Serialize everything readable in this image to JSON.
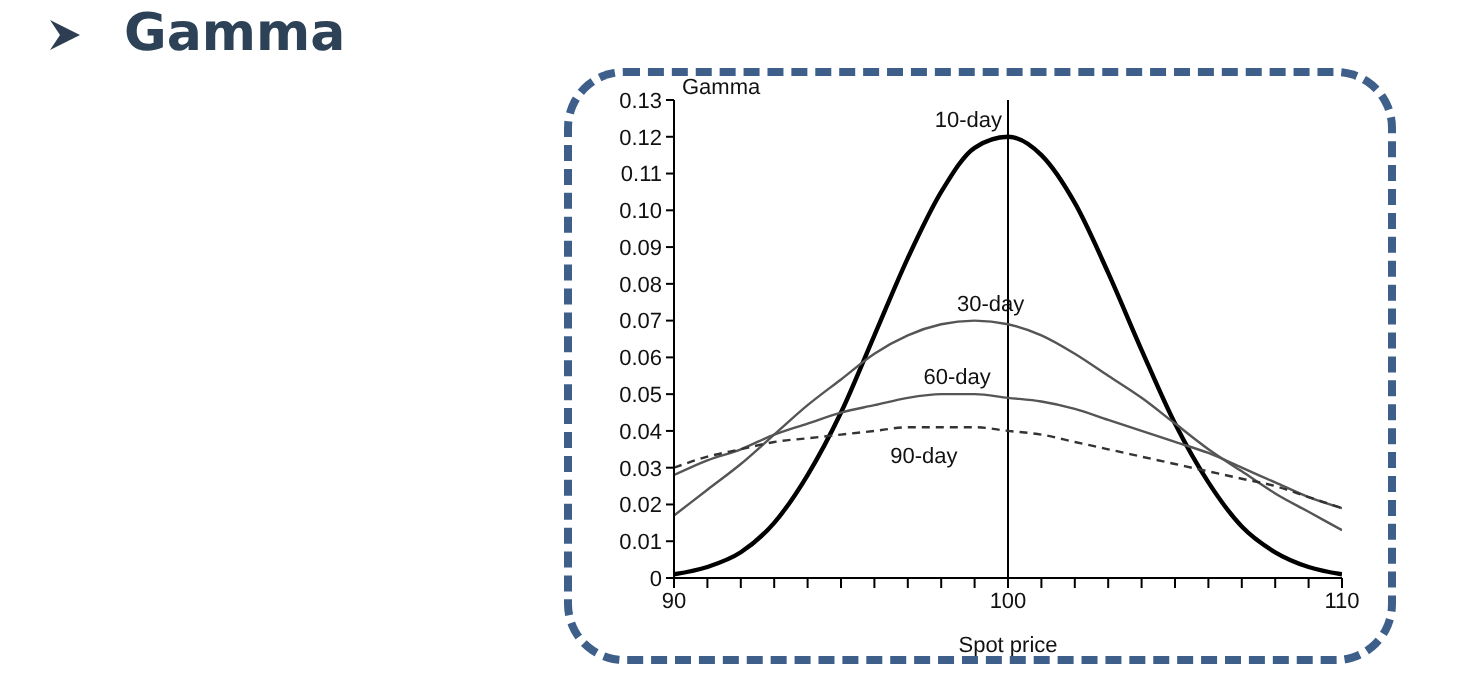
{
  "chart_data": {
    "type": "line",
    "title": "Gamma",
    "xlabel": "Spot price",
    "ylabel": "Gamma",
    "x": [
      90,
      91,
      92,
      93,
      94,
      95,
      96,
      97,
      98,
      99,
      100,
      101,
      102,
      103,
      104,
      105,
      106,
      107,
      108,
      109,
      110
    ],
    "series": [
      {
        "name": "10-day",
        "color": "#000000",
        "line_style": "solid",
        "values": [
          0.001,
          0.003,
          0.007,
          0.015,
          0.028,
          0.045,
          0.066,
          0.087,
          0.105,
          0.117,
          0.12,
          0.115,
          0.102,
          0.083,
          0.062,
          0.042,
          0.026,
          0.014,
          0.007,
          0.003,
          0.001
        ]
      },
      {
        "name": "30-day",
        "color": "#555555",
        "line_style": "solid",
        "values": [
          0.017,
          0.024,
          0.031,
          0.039,
          0.047,
          0.054,
          0.061,
          0.066,
          0.069,
          0.07,
          0.069,
          0.066,
          0.061,
          0.055,
          0.049,
          0.042,
          0.035,
          0.029,
          0.023,
          0.018,
          0.013
        ]
      },
      {
        "name": "60-day",
        "color": "#555555",
        "line_style": "solid",
        "values": [
          0.028,
          0.032,
          0.035,
          0.039,
          0.042,
          0.045,
          0.047,
          0.049,
          0.05,
          0.05,
          0.049,
          0.048,
          0.046,
          0.043,
          0.04,
          0.037,
          0.034,
          0.03,
          0.026,
          0.022,
          0.019
        ]
      },
      {
        "name": "90-day",
        "color": "#333333",
        "line_style": "dashed",
        "values": [
          0.03,
          0.033,
          0.035,
          0.037,
          0.038,
          0.039,
          0.04,
          0.041,
          0.041,
          0.041,
          0.04,
          0.039,
          0.037,
          0.035,
          0.033,
          0.031,
          0.029,
          0.027,
          0.025,
          0.022,
          0.019
        ]
      }
    ],
    "xlim": [
      90,
      110
    ],
    "xticks": [
      90,
      {
        "value": 91,
        "label": null
      },
      {
        "value": 92,
        "label": null
      },
      {
        "value": 93,
        "label": null
      },
      {
        "value": 94,
        "label": null
      },
      {
        "value": 95,
        "label": null
      },
      {
        "value": 96,
        "label": null
      },
      {
        "value": 97,
        "label": null
      },
      {
        "value": 98,
        "label": null
      },
      {
        "value": 99,
        "label": null
      },
      100,
      {
        "value": 101,
        "label": null
      },
      {
        "value": 102,
        "label": null
      },
      {
        "value": 103,
        "label": null
      },
      {
        "value": 104,
        "label": null
      },
      {
        "value": 105,
        "label": null
      },
      {
        "value": 106,
        "label": null
      },
      {
        "value": 107,
        "label": null
      },
      {
        "value": 108,
        "label": null
      },
      {
        "value": 109,
        "label": null
      },
      110
    ],
    "ylim": [
      0,
      0.13
    ],
    "yticks": [
      0,
      {
        "value": 0.01,
        "label": "0.01"
      },
      {
        "value": 0.02,
        "label": "0.02"
      },
      {
        "value": 0.03,
        "label": "0.03"
      },
      {
        "value": 0.04,
        "label": "0.04"
      },
      {
        "value": 0.05,
        "label": "0.05"
      },
      {
        "value": 0.06,
        "label": "0.06"
      },
      {
        "value": 0.07,
        "label": "0.07"
      },
      {
        "value": 0.08,
        "label": "0.08"
      },
      {
        "value": 0.09,
        "label": "0.09"
      },
      {
        "value": 0.1,
        "label": "0.10"
      },
      {
        "value": 0.11,
        "label": "0.11"
      },
      {
        "value": 0.12,
        "label": "0.12"
      },
      {
        "value": 0.13,
        "label": "0.13"
      }
    ],
    "ref_lines": [
      {
        "axis": "x",
        "value": 100,
        "color": "#000000"
      }
    ],
    "grid": false,
    "marker": "none"
  }
}
